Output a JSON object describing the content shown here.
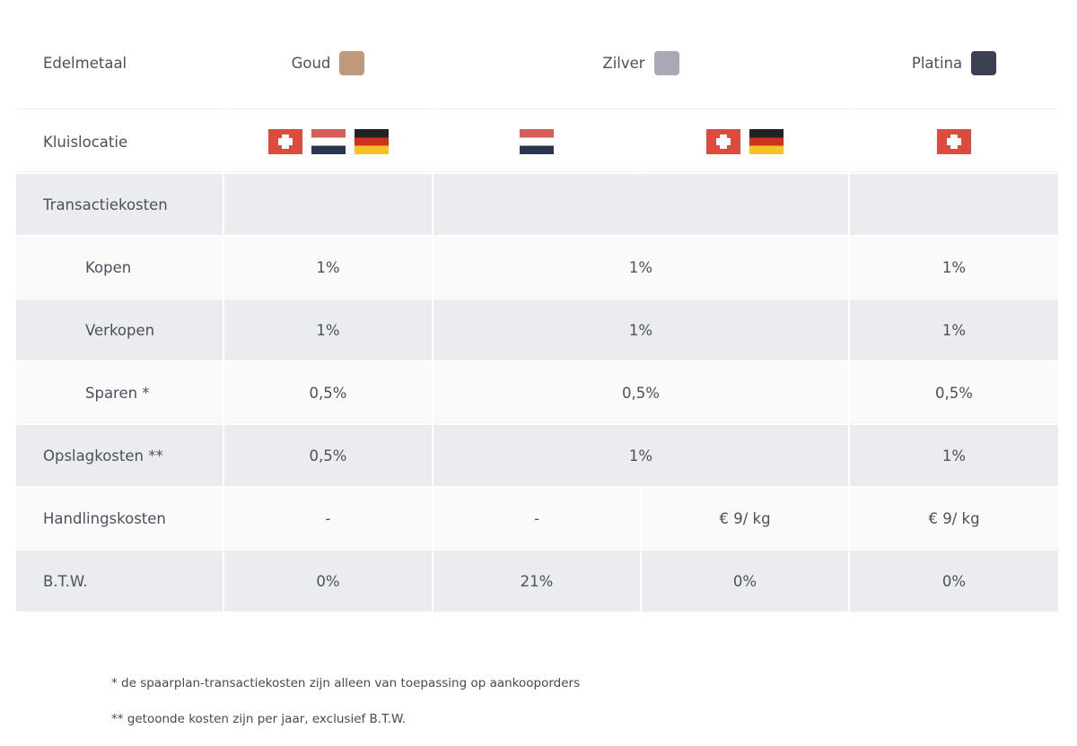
{
  "header": {
    "row_label": "Edelmetaal",
    "metals": [
      {
        "name": "Goud",
        "color": "#c19a7c"
      },
      {
        "name": "Zilver",
        "color": "#a8a9b3"
      },
      {
        "name": "Platina",
        "color": "#3b4152"
      }
    ]
  },
  "vault": {
    "label": "Kluislocatie",
    "goud": [
      "switzerland-flag",
      "netherlands-flag",
      "germany-flag"
    ],
    "zilver_nl": [
      "netherlands-flag"
    ],
    "zilver_other": [
      "switzerland-flag",
      "germany-flag"
    ],
    "platina": [
      "switzerland-flag"
    ]
  },
  "rows": {
    "transactie": {
      "label": "Transactiekosten"
    },
    "kopen": {
      "label": "Kopen",
      "goud": "1%",
      "zilver": "1%",
      "platina": "1%"
    },
    "verkopen": {
      "label": "Verkopen",
      "goud": "1%",
      "zilver": "1%",
      "platina": "1%"
    },
    "sparen": {
      "label": "Sparen *",
      "goud": "0,5%",
      "zilver": "0,5%",
      "platina": "0,5%"
    },
    "opslag": {
      "label": "Opslagkosten **",
      "goud": "0,5%",
      "zilver": "1%",
      "platina": "1%"
    },
    "handling": {
      "label": "Handlingskosten",
      "goud": "-",
      "zilver_nl": "-",
      "zilver_other": "€ 9/ kg",
      "platina": "€ 9/ kg"
    },
    "btw": {
      "label": "B.T.W.",
      "goud": "0%",
      "zilver_nl": "21%",
      "zilver_other": "0%",
      "platina": "0%"
    }
  },
  "notes": [
    "* de spaarplan-transactiekosten zijn alleen van toepassing op aankooporders",
    "** getoonde kosten zijn per jaar, exclusief B.T.W."
  ]
}
